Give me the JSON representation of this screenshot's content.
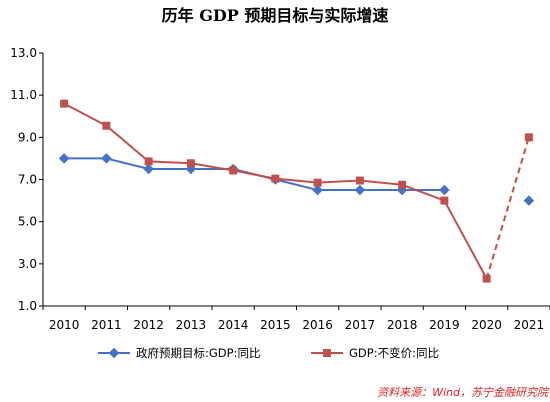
{
  "chart_data": {
    "type": "line",
    "title": "历年 GDP 预期目标与实际增速",
    "source": "资料来源：Wind，苏宁金融研究院",
    "x": [
      "2010",
      "2011",
      "2012",
      "2013",
      "2014",
      "2015",
      "2016",
      "2017",
      "2018",
      "2019",
      "2020",
      "2021"
    ],
    "yticks": [
      "13.0",
      "11.0",
      "9.0",
      "7.0",
      "5.0",
      "3.0",
      "1.0"
    ],
    "ylim": [
      1,
      13
    ],
    "grid": false,
    "legend_position": "bottom",
    "series": [
      {
        "name": "政府预期目标:GDP:同比",
        "color": "#4472C4",
        "marker": "diamond",
        "values": [
          8.0,
          8.0,
          7.5,
          7.5,
          7.5,
          7.0,
          6.5,
          6.5,
          6.5,
          6.5,
          null,
          6.0
        ],
        "connect_gap": false
      },
      {
        "name": "GDP:不变价:同比",
        "color": "#C0504D",
        "marker": "square",
        "values": [
          10.6,
          9.55,
          7.86,
          7.77,
          7.43,
          7.04,
          6.85,
          6.95,
          6.75,
          6.0,
          2.3,
          9.0
        ],
        "dashed_last_segment": true
      }
    ]
  }
}
